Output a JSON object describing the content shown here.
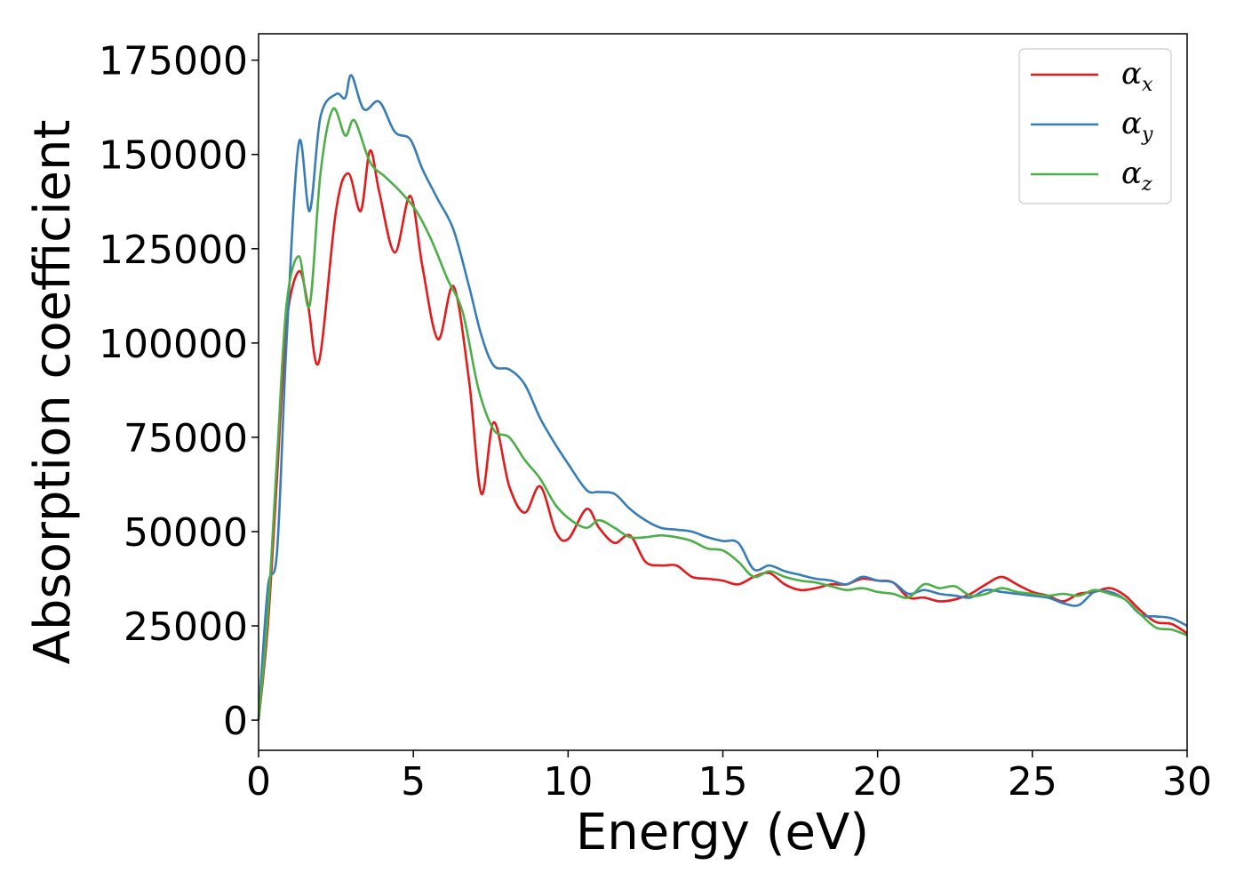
{
  "chart_data": {
    "type": "line",
    "title": "",
    "xlabel": "Energy (eV)",
    "ylabel": "Absorption coefficient",
    "xlim": [
      0,
      30
    ],
    "ylim": [
      -8000,
      182000
    ],
    "xticks": [
      "0",
      "5",
      "10",
      "15",
      "20",
      "25",
      "30"
    ],
    "xtick_values": [
      0,
      5,
      10,
      15,
      20,
      25,
      30
    ],
    "yticks": [
      "0",
      "25000",
      "50000",
      "75000",
      "100000",
      "125000",
      "150000",
      "175000"
    ],
    "ytick_values": [
      0,
      25000,
      50000,
      75000,
      100000,
      125000,
      150000,
      175000
    ],
    "grid": false,
    "legend": {
      "placement": "top-right"
    },
    "series": [
      {
        "name": "α",
        "subscript": "x",
        "color": "#e41a1c",
        "x": [
          0,
          0.3,
          0.6,
          0.9,
          1.3,
          1.6,
          1.95,
          2.5,
          2.9,
          3.3,
          3.6,
          3.9,
          4.4,
          4.9,
          5.3,
          5.8,
          6.3,
          6.8,
          7.2,
          7.6,
          8.1,
          8.6,
          9.1,
          9.6,
          10.0,
          10.6,
          11.0,
          11.5,
          12.0,
          12.5,
          13.0,
          13.5,
          14.0,
          14.5,
          15.0,
          15.5,
          16.0,
          16.5,
          17.0,
          17.5,
          18.0,
          18.5,
          19.0,
          19.5,
          20.0,
          20.5,
          21.0,
          21.5,
          22.0,
          22.5,
          23.0,
          23.5,
          24.0,
          24.5,
          25.0,
          25.5,
          26.0,
          26.5,
          27.0,
          27.5,
          28.0,
          28.5,
          29.0,
          29.5,
          30.0
        ],
        "y": [
          0,
          25000,
          65000,
          105000,
          119000,
          110000,
          95000,
          135000,
          145000,
          135000,
          151000,
          140000,
          124000,
          139000,
          120000,
          101000,
          115000,
          90000,
          60000,
          79000,
          62000,
          55000,
          62000,
          50000,
          48000,
          56000,
          51000,
          47000,
          49000,
          42000,
          41000,
          41000,
          38000,
          37500,
          37000,
          36000,
          38000,
          39000,
          36000,
          34500,
          35000,
          36000,
          36000,
          37500,
          37000,
          36500,
          32500,
          32500,
          31500,
          32000,
          33500,
          36000,
          38000,
          36000,
          34000,
          33000,
          31500,
          33500,
          34000,
          35000,
          33000,
          29000,
          26000,
          25500,
          23000
        ]
      },
      {
        "name": "α",
        "subscript": "y",
        "color": "#377eb8",
        "x": [
          0,
          0.3,
          0.6,
          0.9,
          1.3,
          1.65,
          2.0,
          2.5,
          2.8,
          3.0,
          3.4,
          3.9,
          4.4,
          4.9,
          5.3,
          5.8,
          6.3,
          6.8,
          7.2,
          7.6,
          8.1,
          8.6,
          9.1,
          9.6,
          10.0,
          10.6,
          11.0,
          11.5,
          12.0,
          12.5,
          13.0,
          13.5,
          14.0,
          14.5,
          15.0,
          15.5,
          16.0,
          16.5,
          17.0,
          17.5,
          18.0,
          18.5,
          19.0,
          19.5,
          20.0,
          20.5,
          21.0,
          21.5,
          22.0,
          22.5,
          23.0,
          23.5,
          24.0,
          24.5,
          25.0,
          25.5,
          26.0,
          26.5,
          27.0,
          27.5,
          28.0,
          28.5,
          29.0,
          29.5,
          30.0
        ],
        "y": [
          0,
          35000,
          45000,
          100000,
          153000,
          135000,
          160000,
          166000,
          165000,
          171000,
          162000,
          164000,
          156000,
          154000,
          146000,
          138000,
          130000,
          115000,
          102000,
          94000,
          93000,
          89000,
          80000,
          73000,
          68000,
          61000,
          60500,
          60000,
          56000,
          53000,
          51000,
          50500,
          50000,
          48500,
          47500,
          47000,
          40000,
          41000,
          39500,
          38500,
          37500,
          37000,
          36000,
          38000,
          37000,
          36500,
          33500,
          34500,
          33500,
          33000,
          32500,
          34500,
          34000,
          33500,
          33000,
          32500,
          31000,
          30500,
          34000,
          34000,
          32000,
          28000,
          27500,
          27000,
          25000
        ]
      },
      {
        "name": "α",
        "subscript": "z",
        "color": "#4daf4a",
        "x": [
          0,
          0.3,
          0.6,
          0.9,
          1.3,
          1.65,
          2.0,
          2.4,
          2.8,
          3.1,
          3.6,
          4.1,
          4.6,
          5.1,
          5.6,
          6.1,
          6.6,
          7.1,
          7.6,
          8.1,
          8.6,
          9.1,
          9.6,
          10.1,
          10.6,
          11.0,
          11.5,
          12.0,
          12.5,
          13.0,
          13.5,
          14.0,
          14.5,
          15.0,
          15.5,
          16.0,
          16.5,
          17.0,
          17.5,
          18.0,
          18.5,
          19.0,
          19.5,
          20.0,
          20.5,
          21.0,
          21.5,
          22.0,
          22.5,
          23.0,
          23.5,
          24.0,
          24.5,
          25.0,
          25.5,
          26.0,
          26.5,
          27.0,
          27.5,
          28.0,
          28.5,
          29.0,
          29.5,
          30.0
        ],
        "y": [
          0,
          28000,
          70000,
          110000,
          123000,
          110000,
          145000,
          162000,
          155000,
          159000,
          148000,
          144000,
          140000,
          135000,
          127000,
          117000,
          108000,
          88000,
          77000,
          75000,
          69000,
          64000,
          57000,
          53000,
          51000,
          53000,
          51000,
          48500,
          48500,
          49000,
          48500,
          47500,
          45500,
          45000,
          42000,
          38000,
          39500,
          38000,
          37000,
          36500,
          35500,
          34500,
          35000,
          34000,
          33500,
          32500,
          36000,
          35000,
          35500,
          33000,
          33500,
          35000,
          34000,
          33500,
          33000,
          33500,
          33000,
          34500,
          33500,
          32000,
          28000,
          24500,
          24000,
          22500
        ]
      }
    ]
  }
}
